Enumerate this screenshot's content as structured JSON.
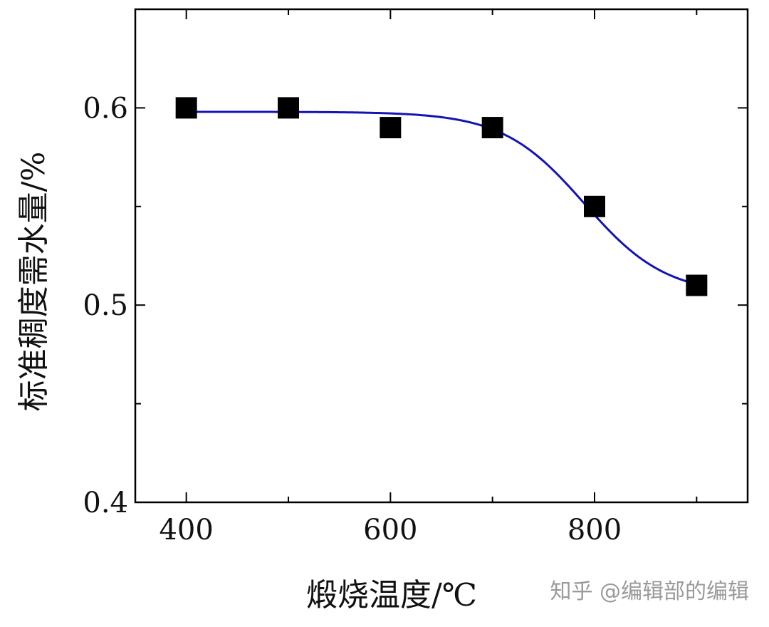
{
  "chart_data": {
    "type": "scatter",
    "title": "",
    "xlabel": "煅烧温度/℃",
    "ylabel": "标准稠度需水量/%",
    "xlim": [
      350,
      950
    ],
    "ylim": [
      0.4,
      0.65
    ],
    "x_ticks": [
      400,
      600,
      800
    ],
    "x_tick_labels": [
      "400",
      "600",
      "800"
    ],
    "x_minor_ticks": [
      500,
      700,
      900
    ],
    "y_ticks": [
      0.4,
      0.5,
      0.6
    ],
    "y_tick_labels": [
      "0.4",
      "0.5",
      "0.6"
    ],
    "y_minor_ticks": [
      0.45,
      0.55
    ],
    "grid": false,
    "legend": "none",
    "series": [
      {
        "marker": "square",
        "color": "#000000",
        "x": [
          400,
          500,
          600,
          700,
          800,
          900
        ],
        "y": [
          0.6,
          0.6,
          0.59,
          0.59,
          0.55,
          0.51
        ]
      }
    ],
    "fit_curve": {
      "type": "sigmoid",
      "color": "#1414b4",
      "x_start": 400,
      "x_end": 900,
      "y_upper": 0.598,
      "y_lower": 0.505,
      "x_center": 790,
      "x_scale": 40
    }
  },
  "watermark": "知乎 @编辑部的编辑"
}
